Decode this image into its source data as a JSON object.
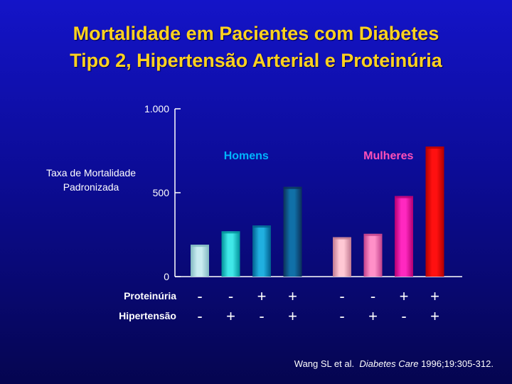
{
  "title_line1": "Mortalidade em Pacientes com Diabetes",
  "title_line2": "Tipo 2, Hipertensão Arterial e Proteinúria",
  "chart_data": {
    "type": "bar",
    "ylabel_line1": "Taxa de Mortalidade",
    "ylabel_line2": "Padronizada",
    "ylim": [
      0,
      1000
    ],
    "yticks": [
      {
        "value": 0,
        "label": "0"
      },
      {
        "value": 500,
        "label": "500"
      },
      {
        "value": 1000,
        "label": "1.000"
      }
    ],
    "row_labels": [
      "Proteinúria",
      "Hipertensão"
    ],
    "groups": [
      {
        "name": "Homens",
        "color": "#00b4ff",
        "bars": [
          {
            "value": 190,
            "proteinuria": "-",
            "hipertensao": "-",
            "colors": [
              "#c8ecf0",
              "#80b8c0"
            ]
          },
          {
            "value": 270,
            "proteinuria": "-",
            "hipertensao": "+",
            "colors": [
              "#40e8e8",
              "#009098"
            ]
          },
          {
            "value": 305,
            "proteinuria": "+",
            "hipertensao": "-",
            "colors": [
              "#20b0e0",
              "#005c8c"
            ]
          },
          {
            "value": 535,
            "proteinuria": "+",
            "hipertensao": "+",
            "colors": [
              "#1070a8",
              "#0c3058"
            ]
          }
        ]
      },
      {
        "name": "Mulheres",
        "color": "#ff50b8",
        "bars": [
          {
            "value": 235,
            "proteinuria": "-",
            "hipertensao": "-",
            "colors": [
              "#ffc8d4",
              "#c07890"
            ]
          },
          {
            "value": 255,
            "proteinuria": "-",
            "hipertensao": "+",
            "colors": [
              "#ff90c8",
              "#c0408a"
            ]
          },
          {
            "value": 480,
            "proteinuria": "+",
            "hipertensao": "-",
            "colors": [
              "#ff28c0",
              "#b00070"
            ]
          },
          {
            "value": 775,
            "proteinuria": "+",
            "hipertensao": "+",
            "colors": [
              "#ff1010",
              "#b00000"
            ]
          }
        ]
      }
    ]
  },
  "citation": {
    "authors": "Wang SL et al.",
    "journal": "Diabetes Care",
    "details": "1996;19:305-312."
  }
}
